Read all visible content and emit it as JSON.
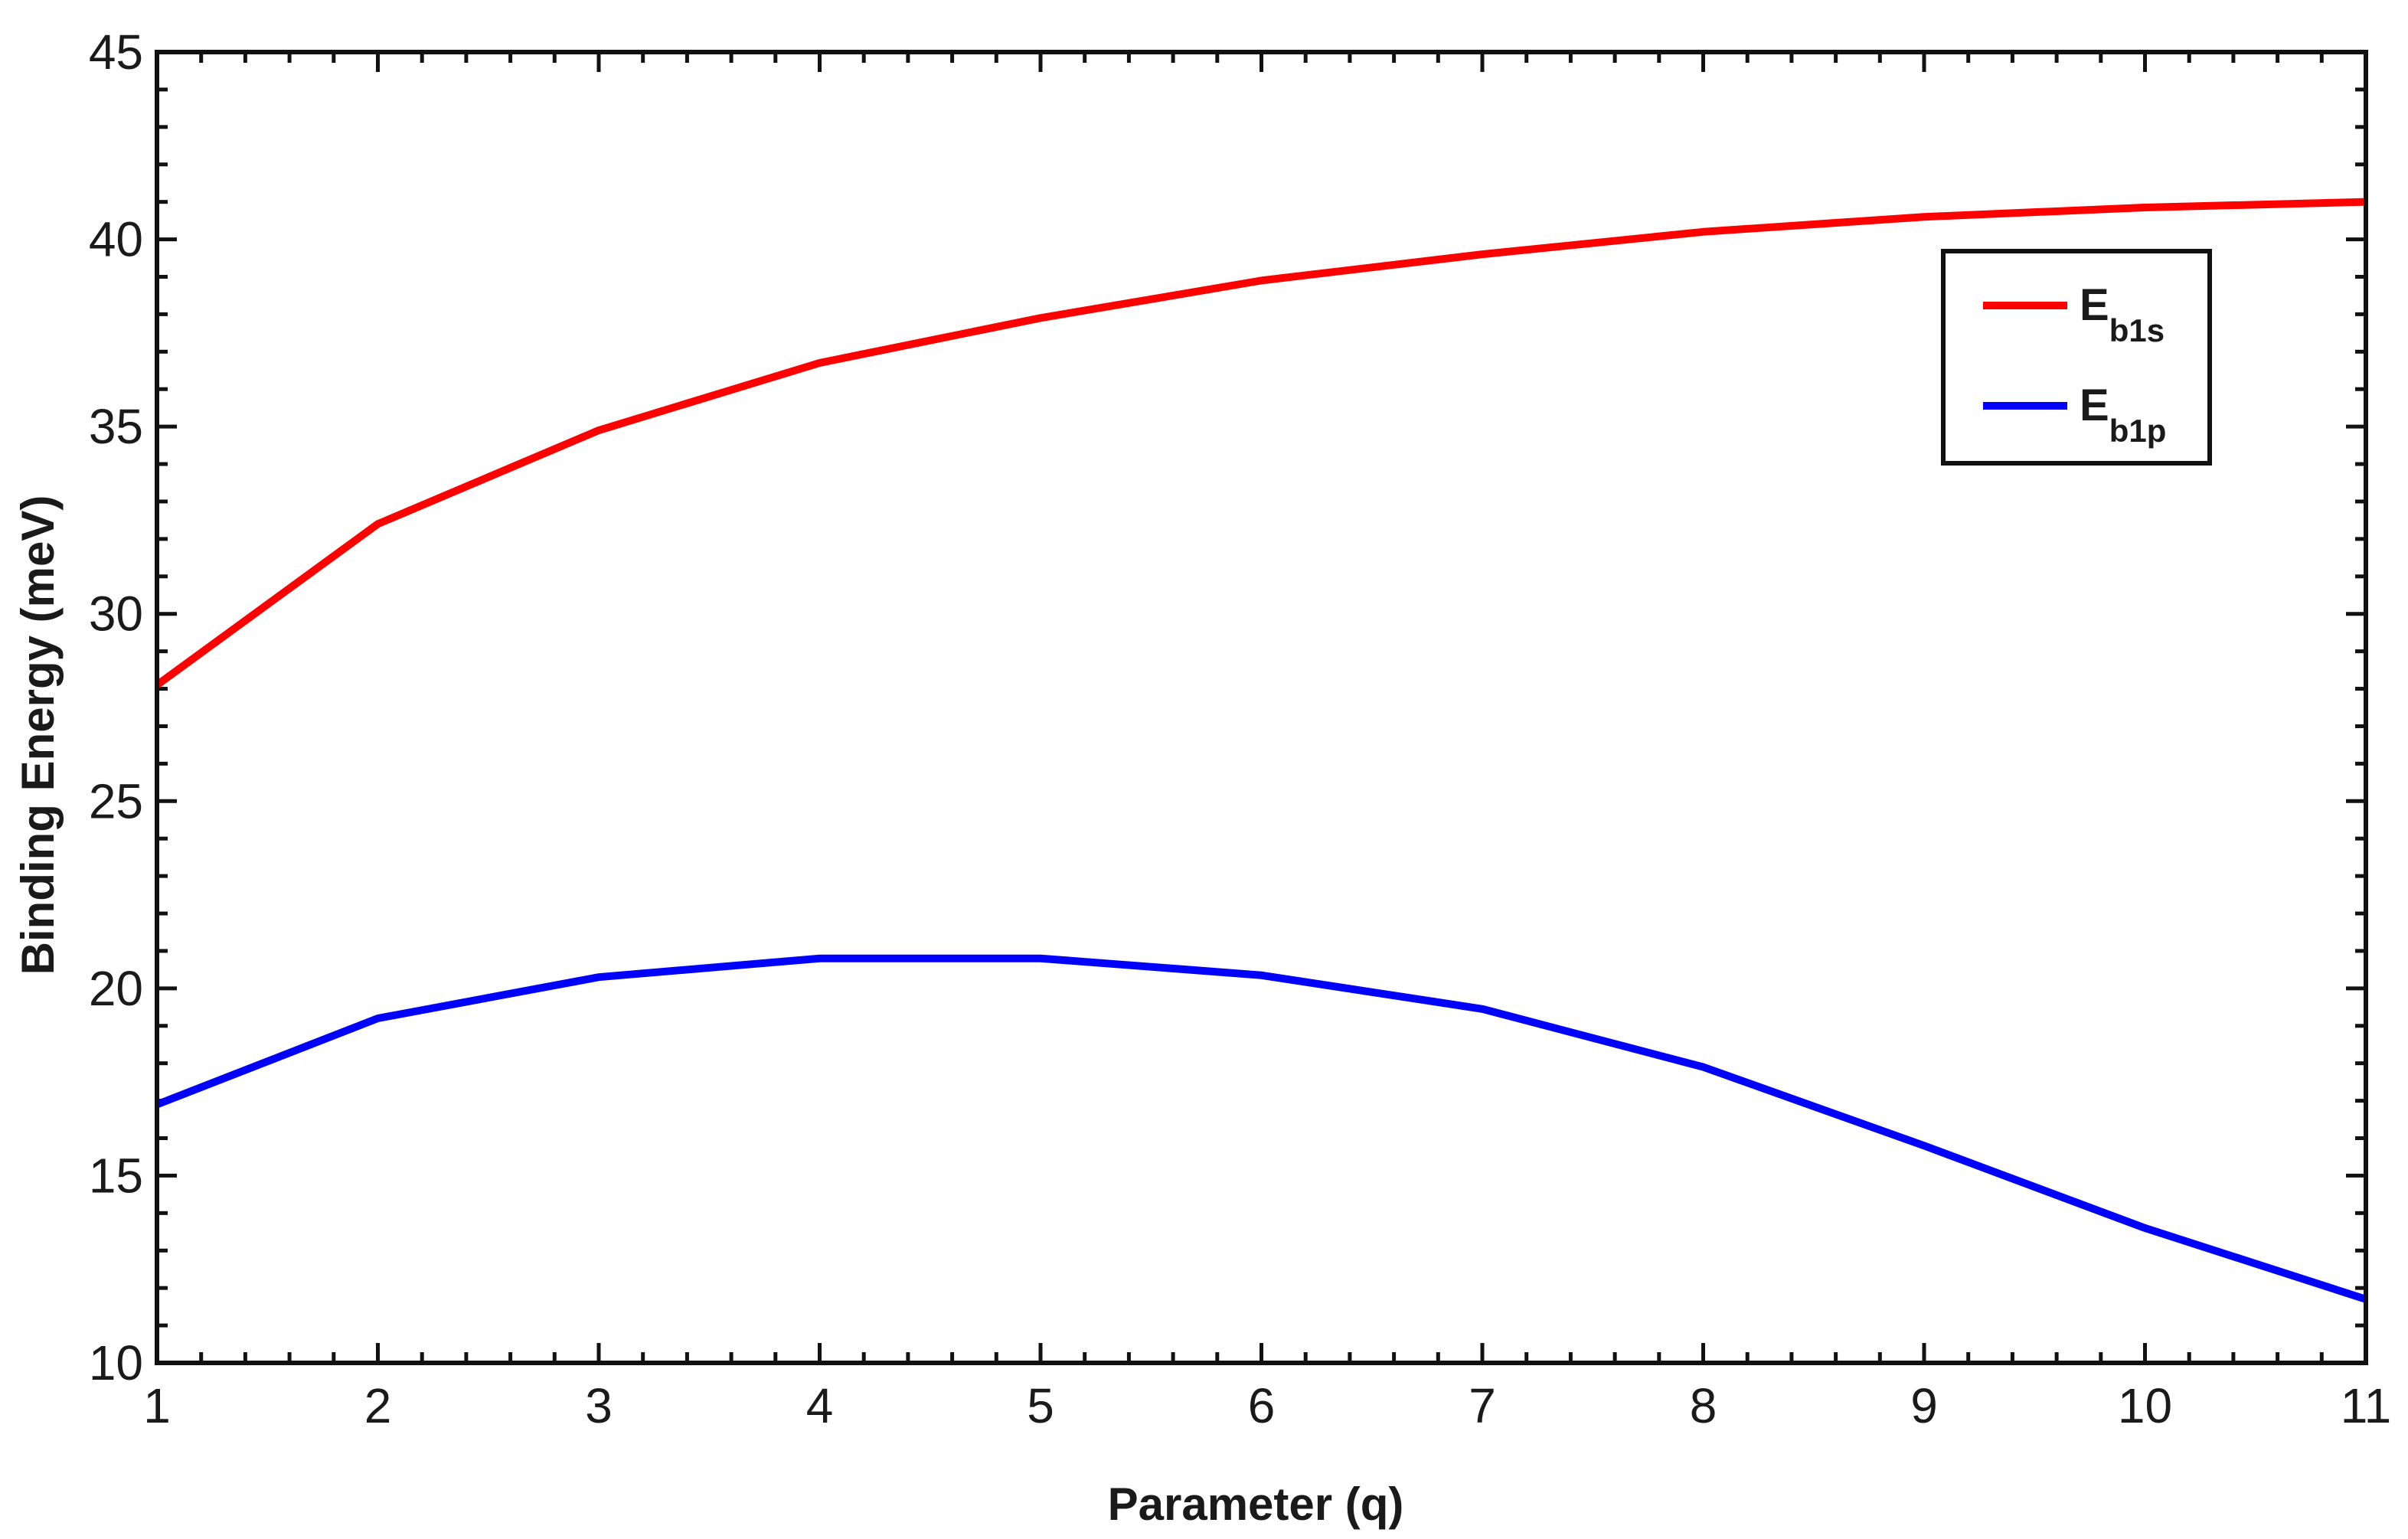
{
  "chart_data": {
    "type": "line",
    "title": "",
    "xlabel": "Parameter (q)",
    "ylabel": "Binding Energy (meV)",
    "xlim": [
      1,
      11
    ],
    "ylim": [
      10,
      45
    ],
    "xticks": [
      1,
      2,
      3,
      4,
      5,
      6,
      7,
      8,
      9,
      10,
      11
    ],
    "yticks": [
      10,
      15,
      20,
      25,
      30,
      35,
      40,
      45
    ],
    "x": [
      1,
      2,
      3,
      4,
      5,
      6,
      7,
      8,
      9,
      10,
      11
    ],
    "grid": false,
    "legend_position": "top-right",
    "series": [
      {
        "name": "Eb1s",
        "label_main": "E",
        "label_sub": "b1s",
        "color": "#ff0000",
        "values": [
          28.1,
          32.4,
          34.9,
          36.7,
          37.9,
          38.9,
          39.6,
          40.2,
          40.6,
          40.85,
          41.0
        ]
      },
      {
        "name": "Eb1p",
        "label_main": "E",
        "label_sub": "b1p",
        "color": "#0000ff",
        "values": [
          16.9,
          19.2,
          20.3,
          20.8,
          20.8,
          20.35,
          19.45,
          17.9,
          15.8,
          13.6,
          11.7
        ]
      }
    ]
  }
}
